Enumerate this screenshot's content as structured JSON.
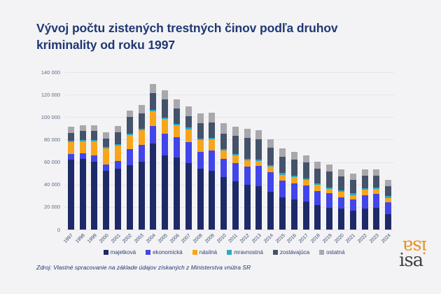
{
  "title": "Vývoj počtu zistených trestných činov podľa druhov kriminality od roku 1997",
  "source": "Zdroj: Vlastné spracovanie na základe údajov získaných z Ministerstva vnútra SR",
  "logo": {
    "flipped": "isa",
    "text": "isa",
    "flipped_color": "#e8931f",
    "text_color": "#414046"
  },
  "style": {
    "background": "#f3f3f5",
    "title_color": "#1f3874",
    "gridline_color": "#e4e4ee",
    "axis_label_color": "#5c6b8a"
  },
  "chart_data": {
    "type": "bar",
    "stacked": true,
    "title": "Vývoj počtu zistených trestných činov podľa druhov kriminality od roku 1997",
    "xlabel": "",
    "ylabel": "",
    "ylim": [
      0,
      140000
    ],
    "yticks": [
      "0",
      "20 000",
      "40 000",
      "60 000",
      "80 000",
      "100 000",
      "120 000",
      "140 000"
    ],
    "grid": true,
    "legend_position": "bottom",
    "categories": [
      1997,
      1998,
      1999,
      2000,
      2001,
      2002,
      2003,
      2004,
      2005,
      2006,
      2007,
      2008,
      2009,
      2010,
      2011,
      2012,
      2013,
      2014,
      2015,
      2016,
      2017,
      2018,
      2019,
      2020,
      2021,
      2022,
      2023,
      2024
    ],
    "series": [
      {
        "name": "majetková",
        "color": "#1e2a68",
        "values": [
          62000,
          63000,
          60100,
          52300,
          54000,
          57400,
          60100,
          76300,
          65900,
          64200,
          58900,
          54400,
          52300,
          46800,
          43100,
          39600,
          38400,
          33400,
          28700,
          26700,
          25200,
          21500,
          19500,
          18500,
          17000,
          18500,
          19100,
          13700
        ]
      },
      {
        "name": "ekonomická",
        "color": "#4245ea",
        "values": [
          5100,
          4700,
          6000,
          5600,
          7000,
          14400,
          15200,
          16000,
          19300,
          18100,
          19100,
          14800,
          18100,
          16200,
          16000,
          16400,
          18400,
          17900,
          15000,
          14400,
          13800,
          12700,
          12700,
          10300,
          9700,
          12300,
          12700,
          10300
        ]
      },
      {
        "name": "násilná",
        "color": "#f9a51a",
        "values": [
          10700,
          10700,
          12300,
          14000,
          13500,
          12300,
          12900,
          12900,
          12900,
          10300,
          11300,
          10200,
          9600,
          7400,
          6600,
          5500,
          4100,
          4700,
          5100,
          5500,
          5500,
          5700,
          4100,
          4700,
          4100,
          4500,
          4100,
          4100
        ]
      },
      {
        "name": "mravnostná",
        "color": "#2ba9c5",
        "values": [
          1200,
          1000,
          1200,
          1400,
          1400,
          1400,
          1400,
          1400,
          1400,
          1500,
          1600,
          1300,
          1400,
          1400,
          1400,
          1400,
          1200,
          1400,
          1400,
          1200,
          1200,
          1400,
          1200,
          1400,
          1400,
          1600,
          1600,
          1600
        ]
      },
      {
        "name": "zostávajúca",
        "color": "#44536a",
        "values": [
          7000,
          8200,
          8000,
          7800,
          10300,
          14400,
          14000,
          15000,
          16000,
          13300,
          10000,
          13700,
          14000,
          13700,
          16000,
          18500,
          18300,
          15400,
          14800,
          14400,
          13800,
          12900,
          14200,
          12700,
          11900,
          10900,
          10300,
          9200
        ]
      },
      {
        "name": "ostatná",
        "color": "#a8a8ad",
        "values": [
          5300,
          5100,
          5300,
          5700,
          6200,
          6200,
          7200,
          7600,
          8200,
          8600,
          8900,
          8800,
          8600,
          8900,
          8600,
          8200,
          8200,
          7600,
          7200,
          7000,
          6600,
          6200,
          6200,
          5700,
          5500,
          6000,
          5500,
          5500
        ]
      }
    ]
  }
}
